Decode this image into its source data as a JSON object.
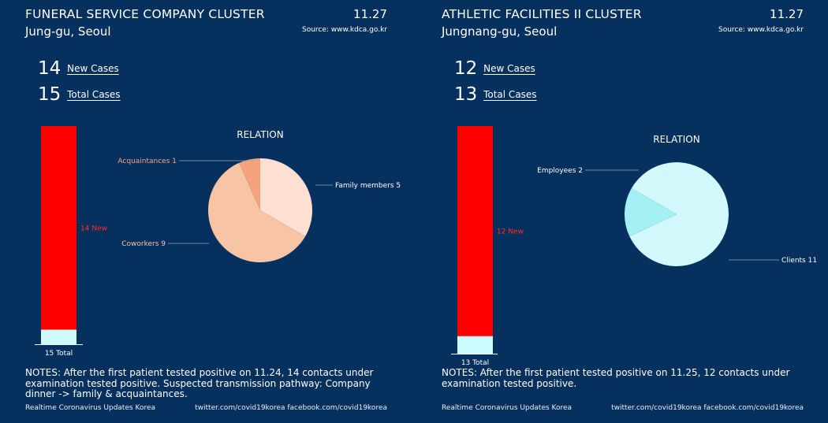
{
  "panels": [
    {
      "title": "FUNERAL SERVICE COMPANY CLUSTER",
      "location": "Jung-gu, Seoul",
      "date": "11.27",
      "source": "Source: www.kdca.go.kr",
      "new_cases": "14",
      "new_cases_label": "New Cases",
      "total_cases": "15",
      "total_cases_label": "Total Cases",
      "notes": "NOTES: After the first patient tested positive on 11.24, 14 contacts under examination tested positive. Suspected transmission pathway: Company dinner -> family & acquaintances.",
      "footer_left": "Realtime Coronavirus Updates Korea",
      "footer_right": "twitter.com/covid19korea  facebook.com/covid19korea"
    },
    {
      "title": "ATHLETIC FACILITIES II CLUSTER",
      "location": "Jungnang-gu, Seoul",
      "date": "11.27",
      "source": "Source: www.kdca.go.kr",
      "new_cases": "12",
      "new_cases_label": "New Cases",
      "total_cases": "13",
      "total_cases_label": "Total Cases",
      "notes": "NOTES: After the first patient tested positive on 11.25, 12 contacts under examination tested positive.",
      "footer_left": "Realtime Coronavirus Updates Korea",
      "footer_right": "twitter.com/covid19korea  facebook.com/covid19korea"
    }
  ],
  "colors": {
    "background": "#06305e",
    "new_bar": "#ff0000",
    "existing_bar": "#cdfafc",
    "text": "#ffffff"
  },
  "chart_data": [
    {
      "type": "bar",
      "categories": [
        "New",
        "Total"
      ],
      "values": [
        14,
        15
      ],
      "labels": [
        "14 New",
        "15 Total"
      ]
    },
    {
      "type": "pie",
      "title": "RELATION",
      "labels": [
        "Family members",
        "Coworkers",
        "Acquaintances"
      ],
      "values": [
        5,
        9,
        1
      ],
      "display_labels": [
        "Family members 5",
        "Coworkers 9",
        "Acquaintances 1"
      ],
      "colors": [
        "#fde0d2",
        "#f7c4a6",
        "#f4a37a"
      ]
    },
    {
      "type": "bar",
      "categories": [
        "New",
        "Total"
      ],
      "values": [
        12,
        13
      ],
      "labels": [
        "12 New",
        "13 Total"
      ]
    },
    {
      "type": "pie",
      "title": "RELATION",
      "labels": [
        "Clients",
        "Employees"
      ],
      "values": [
        11,
        2
      ],
      "display_labels": [
        "Clients 11",
        "Employees 2"
      ],
      "colors": [
        "#d2f8fb",
        "#a4f0f4"
      ]
    }
  ]
}
